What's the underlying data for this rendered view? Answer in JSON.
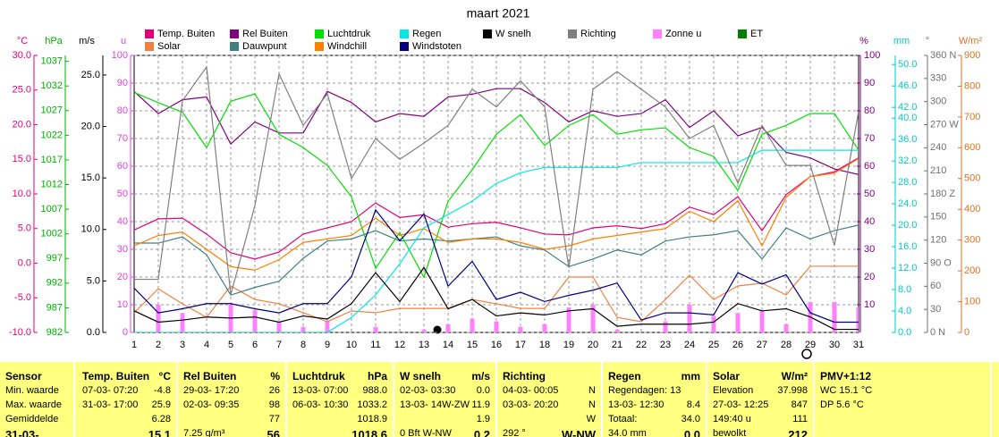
{
  "chart_data": {
    "type": "line",
    "title": "maart 2021",
    "grid": true,
    "categories": [
      "1",
      "2",
      "3",
      "4",
      "5",
      "6",
      "7",
      "8",
      "9",
      "10",
      "11",
      "12",
      "13",
      "14",
      "15",
      "16",
      "17",
      "18",
      "19",
      "20",
      "21",
      "22",
      "23",
      "24",
      "25",
      "26",
      "27",
      "28",
      "29",
      "30",
      "31"
    ],
    "axes": [
      {
        "label": "°C",
        "color": "#e0007a",
        "lim": [
          -10,
          30
        ],
        "ticks": [
          {
            "value": -10,
            "label": "-10.0"
          },
          {
            "value": -5,
            "label": "-5.0"
          },
          {
            "value": 0,
            "label": "0.0"
          },
          {
            "value": 5,
            "label": "5.0"
          },
          {
            "value": 10,
            "label": "10.0"
          },
          {
            "value": 15,
            "label": "15.0"
          },
          {
            "value": 20,
            "label": "20.0"
          },
          {
            "value": 25,
            "label": "25.0"
          },
          {
            "value": 30,
            "label": "30.0"
          }
        ]
      },
      {
        "label": "hPa",
        "color": "#00b000",
        "lim": [
          982,
          1038.2
        ],
        "ticks": [
          982,
          987,
          992,
          997,
          1002,
          1007,
          1012,
          1017,
          1022,
          1027,
          1032,
          1037
        ]
      },
      {
        "label": "m/s",
        "color": "#000000",
        "lim": [
          0,
          26.9
        ],
        "ticks": [
          {
            "value": 0,
            "label": "0.0"
          },
          {
            "value": 5,
            "label": "5.0"
          },
          {
            "value": 10,
            "label": "10.0"
          },
          {
            "value": 15,
            "label": "15.0"
          },
          {
            "value": 20,
            "label": "20.0"
          },
          {
            "value": 25,
            "label": "25.0"
          }
        ]
      },
      {
        "label": "u",
        "color": "#e040e0",
        "lim": [
          0,
          100
        ],
        "ticks": [
          0,
          10,
          20,
          30,
          40,
          50,
          60,
          70,
          80,
          90,
          100
        ]
      },
      {
        "label": "%",
        "color": "#800080",
        "lim": [
          0,
          100
        ],
        "ticks": [
          10,
          20,
          30,
          40,
          50,
          60,
          70,
          80,
          90,
          100
        ]
      },
      {
        "label": "mm",
        "color": "#00c8c8",
        "lim": [
          0,
          51.7
        ],
        "ticks": [
          {
            "value": 0,
            "label": "0.0"
          },
          {
            "value": 4,
            "label": "4.0"
          },
          {
            "value": 8,
            "label": "8.0"
          },
          {
            "value": 12,
            "label": "12.0"
          },
          {
            "value": 16,
            "label": "16.0"
          },
          {
            "value": 20,
            "label": "20.0"
          },
          {
            "value": 24,
            "label": "24.0"
          },
          {
            "value": 28,
            "label": "28.0"
          },
          {
            "value": 32,
            "label": "32.0"
          },
          {
            "value": 36,
            "label": "36.0"
          },
          {
            "value": 40,
            "label": "40.0"
          },
          {
            "value": 42,
            "label": "42.0"
          },
          {
            "value": 46,
            "label": "46.0"
          },
          {
            "value": 50,
            "label": "50.0"
          }
        ]
      },
      {
        "label": "°",
        "color": "#707070",
        "lim": [
          0,
          360
        ],
        "ticks": [
          {
            "value": 0,
            "label": "0 N"
          },
          30,
          60,
          {
            "value": 90,
            "label": "90 O"
          },
          120,
          150,
          {
            "value": 180,
            "label": "180 Z"
          },
          210,
          240,
          {
            "value": 270,
            "label": "270 W"
          },
          300,
          330,
          {
            "value": 360,
            "label": "360 N"
          }
        ]
      },
      {
        "label": "W/m²",
        "color": "#e07020",
        "lim": [
          0,
          900
        ],
        "ticks": [
          0,
          100,
          200,
          300,
          400,
          500,
          600,
          700,
          800,
          900
        ]
      }
    ],
    "series": [
      {
        "name": "Temp. Buiten",
        "color": "#e0007a",
        "axis": "°C",
        "values": [
          4.8,
          6.4,
          6.5,
          4.2,
          1.5,
          0.6,
          1.6,
          4.2,
          5.1,
          6.0,
          8.7,
          6.6,
          7.0,
          5.2,
          5.7,
          5.9,
          5.1,
          4.2,
          4.1,
          5.1,
          5.4,
          5.0,
          5.7,
          8.1,
          7.0,
          9.6,
          4.7,
          9.9,
          12.5,
          13.2,
          15.2
        ]
      },
      {
        "name": "Solar",
        "color": "#f08040",
        "axis": "W/m²",
        "values": [
          64,
          142,
          93,
          49,
          151,
          107,
          93,
          64,
          35,
          70,
          64,
          78,
          78,
          78,
          107,
          93,
          78,
          78,
          180,
          180,
          49,
          35,
          107,
          186,
          107,
          151,
          160,
          122,
          215,
          215,
          215
        ]
      },
      {
        "name": "Rel Buiten",
        "color": "#800080",
        "axis": "%",
        "values": [
          87,
          79,
          84,
          85,
          68,
          76,
          72,
          72,
          87,
          83,
          76,
          79,
          78,
          85,
          86,
          88,
          88,
          83,
          76,
          80,
          78,
          79,
          84,
          74,
          80,
          71,
          74,
          65,
          63,
          59,
          57
        ]
      },
      {
        "name": "Dauwpunt",
        "color": "#408080",
        "axis": "°C",
        "values": [
          2.9,
          2.9,
          3.8,
          1.2,
          -4.6,
          -3.5,
          -2.6,
          0.7,
          3.2,
          3.5,
          4.7,
          3.2,
          3.5,
          3.2,
          3.5,
          3.8,
          2.5,
          1.9,
          -0.5,
          0.6,
          1.9,
          1.2,
          3.2,
          3.8,
          4.1,
          4.7,
          0.6,
          5.1,
          3.5,
          4.7,
          5.5
        ]
      },
      {
        "name": "Luchtdruk",
        "color": "#00e000",
        "axis": "hPa",
        "values": [
          1030.7,
          1028.6,
          1026.7,
          1019.5,
          1028.9,
          1030.4,
          1022.2,
          1019.5,
          1015.9,
          1009.5,
          995.0,
          1002.3,
          993.2,
          1008.6,
          1015.0,
          1022.2,
          1026.2,
          1019.9,
          1024.0,
          1026.2,
          1022.2,
          1023.1,
          1023.5,
          1019.5,
          1017.7,
          1010.8,
          1022.2,
          1024.0,
          1026.4,
          1026.4,
          1019.0
        ]
      },
      {
        "name": "Windchill",
        "color": "#ff8000",
        "axis": "°C",
        "values": [
          2.5,
          4.0,
          4.5,
          2.0,
          -0.5,
          -1.0,
          0.5,
          3.0,
          3.5,
          4.0,
          6.5,
          4.0,
          5.0,
          3.0,
          3.5,
          3.5,
          3.0,
          2.0,
          2.5,
          3.5,
          4.0,
          4.5,
          5.0,
          7.5,
          6.0,
          9.0,
          2.5,
          9.5,
          12.5,
          13.0,
          15.1
        ]
      },
      {
        "name": "Regen",
        "color": "#00e8e8",
        "axis": "mm",
        "values": [
          0,
          0,
          0,
          0,
          0,
          0,
          0,
          0,
          0,
          2.8,
          7.0,
          12.8,
          19.5,
          22.0,
          24.5,
          27.8,
          29.8,
          30.8,
          30.8,
          30.8,
          30.8,
          31.7,
          31.7,
          31.7,
          31.7,
          31.7,
          34.0,
          34.0,
          34.0,
          34.0,
          34.0
        ]
      },
      {
        "name": "Windstoten",
        "color": "#000080",
        "axis": "m/s",
        "values": [
          4.3,
          1.9,
          2.3,
          2.8,
          2.8,
          2.3,
          1.9,
          2.8,
          2.8,
          5.4,
          11.9,
          8.9,
          11.5,
          4.5,
          6.9,
          3.2,
          3.9,
          3.0,
          3.6,
          4.1,
          4.8,
          1.2,
          1.9,
          1.9,
          1.7,
          5.8,
          4.7,
          5.6,
          1.9,
          1.0,
          1.0
        ]
      },
      {
        "name": "W snelh",
        "color": "#000000",
        "axis": "m/s",
        "values": [
          2.1,
          1.0,
          1.2,
          1.5,
          1.4,
          1.5,
          1.0,
          1.6,
          1.3,
          2.8,
          5.8,
          3.0,
          6.3,
          2.3,
          3.2,
          1.6,
          1.9,
          1.7,
          2.1,
          2.3,
          0.6,
          0.8,
          0.8,
          0.8,
          1.0,
          2.8,
          2.1,
          2.3,
          1.5,
          0.3,
          0.3
        ]
      },
      {
        "name": "Richting",
        "color": "#808080",
        "axis": "°",
        "values": [
          69,
          69,
          301,
          345,
          49,
          165,
          336,
          269,
          310,
          200,
          252,
          225,
          246,
          269,
          316,
          293,
          327,
          293,
          84,
          316,
          339,
          316,
          293,
          252,
          269,
          194,
          269,
          217,
          217,
          113,
          287
        ]
      },
      {
        "name": "Zonne u",
        "color": "#ff80ff",
        "axis": "u",
        "type": "bar",
        "values": [
          0,
          10,
          7,
          0,
          10,
          8,
          4,
          2,
          4,
          0,
          2,
          0,
          1,
          3,
          5,
          4,
          2,
          3,
          9,
          10,
          1,
          0,
          4,
          10,
          6,
          7,
          8,
          3,
          11,
          11,
          9
        ]
      },
      {
        "name": "ET",
        "color": "#008000",
        "axis": "mm"
      }
    ]
  },
  "stats": [
    {
      "title": "Sensor",
      "rows": [
        [
          "Min. waarde"
        ],
        [
          "Max. waarde"
        ],
        [
          "Gemiddelde"
        ],
        [
          "31-03-"
        ]
      ]
    },
    {
      "title": "Temp. Buiten",
      "unit": "°C",
      "rows": [
        [
          "07-03- 07:20",
          "-4.8"
        ],
        [
          "31-03- 17:00",
          "25.9"
        ],
        [
          "6.28"
        ],
        [
          "15.1"
        ]
      ]
    },
    {
      "title": "Rel Buiten",
      "unit": "%",
      "rows": [
        [
          "29-03- 17:20",
          "26"
        ],
        [
          "02-03- 09:35",
          "98"
        ],
        [
          "77"
        ],
        [
          "7.25 g/m³",
          "56"
        ]
      ]
    },
    {
      "title": "Luchtdruk",
      "unit": "hPa",
      "rows": [
        [
          "13-03- 07:00",
          "988.0"
        ],
        [
          "06-03- 10:30",
          "1033.2"
        ],
        [
          "1018.9"
        ],
        [
          "1018.6"
        ]
      ]
    },
    {
      "title": "W snelh",
      "unit": "m/s",
      "rows": [
        [
          "02-03- 03:30",
          "0.0"
        ],
        [
          "13-03- 14W-ZW",
          "11.9"
        ],
        [
          "1.9"
        ],
        [
          "0 Bft W-NW",
          "0.2"
        ]
      ]
    },
    {
      "title": "Richting",
      "rows": [
        [
          "04-03- 00:05",
          "N"
        ],
        [
          "03-03- 20:20",
          "N"
        ],
        [
          "W"
        ],
        [
          "292 °",
          "W-NW"
        ]
      ]
    },
    {
      "title": "Regen",
      "unit": "mm",
      "rows": [
        [
          "Regendagen: 13"
        ],
        [
          "13-03- 12:30",
          "8.4"
        ],
        [
          "Totaal:",
          "34.0"
        ],
        [
          "34.0 mm",
          "0.0"
        ]
      ]
    },
    {
      "title": "Solar",
      "unit": "W/m²",
      "rows": [
        [
          "Elevation",
          "37.998"
        ],
        [
          "27-03- 12:25",
          "847"
        ],
        [
          "149:40 u",
          "111"
        ],
        [
          "bewolkt",
          "212"
        ]
      ]
    },
    {
      "title": "PMV+1:12",
      "rows": [
        [
          "WC 15.1 °C"
        ],
        [
          "DP 5.6 °C"
        ]
      ]
    }
  ]
}
